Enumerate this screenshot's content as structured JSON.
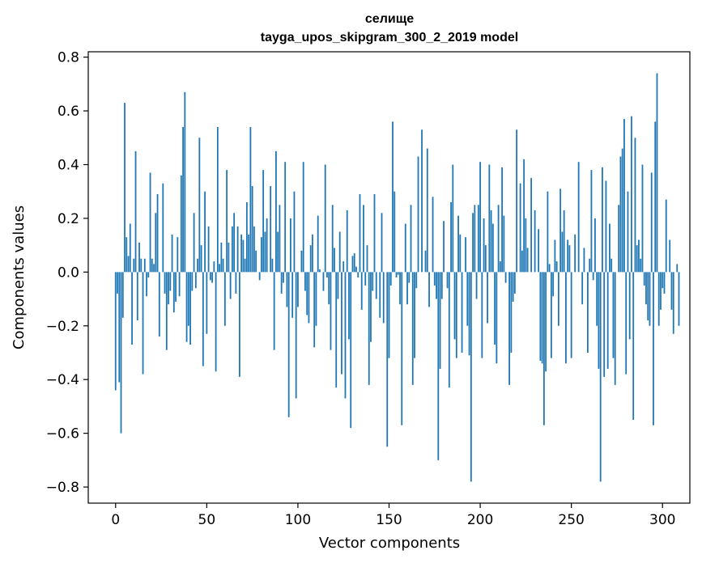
{
  "chart_data": {
    "type": "bar",
    "title": "селище",
    "subtitle": "tayga_upos_skipgram_300_2_2019 model",
    "xlabel": "Vector components",
    "ylabel": "Components values",
    "xlim": [
      -15,
      315
    ],
    "ylim": [
      -0.86,
      0.82
    ],
    "xticks": [
      0,
      50,
      100,
      150,
      200,
      250,
      300
    ],
    "xtick_labels": [
      "0",
      "50",
      "100",
      "150",
      "200",
      "250",
      "300"
    ],
    "yticks": [
      0.8,
      0.6,
      0.4,
      0.2,
      0.0,
      -0.2,
      -0.4,
      -0.6,
      -0.8
    ],
    "ytick_labels": [
      "0.8",
      "0.6",
      "0.4",
      "0.2",
      "0.0",
      "−0.2",
      "−0.4",
      "−0.6",
      "−0.8"
    ],
    "grid": false,
    "bar_color": "#1f77b4",
    "values": [
      -0.44,
      -0.08,
      -0.41,
      -0.6,
      -0.17,
      0.63,
      0.13,
      0.06,
      0.18,
      -0.27,
      0.05,
      0.45,
      -0.18,
      0.11,
      0.05,
      -0.38,
      0.05,
      -0.09,
      -0.02,
      0.37,
      0.05,
      0.03,
      0.22,
      0.29,
      -0.24,
      0.0,
      0.33,
      -0.08,
      -0.29,
      -0.12,
      -0.07,
      0.14,
      -0.15,
      -0.11,
      0.13,
      -0.09,
      0.36,
      0.54,
      0.67,
      -0.26,
      -0.2,
      -0.27,
      -0.07,
      0.22,
      -0.06,
      0.05,
      0.5,
      0.1,
      -0.35,
      0.3,
      -0.23,
      0.17,
      -0.03,
      -0.04,
      0.04,
      -0.37,
      0.54,
      0.03,
      0.11,
      0.05,
      -0.2,
      0.38,
      0.11,
      -0.1,
      0.17,
      0.22,
      -0.08,
      0.17,
      -0.39,
      0.14,
      0.12,
      0.05,
      0.26,
      0.14,
      0.54,
      0.32,
      0.17,
      0.08,
      0.0,
      -0.03,
      0.13,
      0.38,
      0.15,
      0.2,
      0.0,
      0.32,
      0.05,
      -0.29,
      0.45,
      0.15,
      0.25,
      -0.08,
      -0.04,
      0.41,
      -0.13,
      -0.54,
      0.2,
      -0.17,
      0.3,
      -0.47,
      -0.13,
      0.0,
      0.08,
      0.41,
      -0.07,
      -0.16,
      -0.19,
      0.1,
      0.14,
      -0.28,
      -0.2,
      0.21,
      0.01,
      0.0,
      -0.07,
      0.4,
      -0.02,
      -0.12,
      -0.29,
      0.25,
      0.09,
      -0.43,
      -0.1,
      0.15,
      -0.38,
      0.04,
      -0.47,
      0.23,
      -0.25,
      -0.58,
      0.06,
      0.07,
      0.02,
      -0.02,
      0.29,
      -0.14,
      0.25,
      -0.05,
      0.1,
      -0.42,
      -0.26,
      -0.07,
      0.29,
      -0.1,
      0.0,
      -0.17,
      0.22,
      -0.19,
      0.0,
      -0.65,
      -0.32,
      -0.05,
      0.56,
      0.3,
      -0.02,
      -0.01,
      -0.12,
      -0.57,
      0.0,
      0.18,
      -0.12,
      -0.04,
      0.25,
      -0.42,
      -0.32,
      -0.06,
      0.43,
      0.0,
      0.53,
      0.0,
      0.08,
      0.46,
      -0.13,
      0.0,
      0.28,
      -0.05,
      -0.1,
      -0.7,
      -0.36,
      -0.1,
      0.19,
      0.0,
      -0.06,
      -0.43,
      0.26,
      0.4,
      -0.25,
      -0.32,
      0.21,
      0.14,
      -0.3,
      0.0,
      0.13,
      -0.2,
      -0.31,
      -0.78,
      0.22,
      0.25,
      -0.1,
      0.25,
      0.41,
      -0.32,
      0.2,
      0.1,
      -0.19,
      0.4,
      0.23,
      0.18,
      -0.27,
      -0.34,
      0.25,
      0.04,
      0.39,
      0.21,
      -0.04,
      0.0,
      -0.42,
      -0.3,
      -0.11,
      -0.08,
      0.53,
      0.0,
      0.33,
      0.08,
      0.42,
      0.2,
      0.09,
      0.0,
      0.35,
      0.0,
      0.23,
      0.0,
      0.16,
      -0.33,
      -0.34,
      -0.57,
      -0.37,
      0.3,
      0.03,
      -0.32,
      -0.09,
      0.12,
      0.04,
      -0.2,
      0.31,
      0.15,
      0.23,
      -0.34,
      0.12,
      0.1,
      -0.32,
      0.0,
      0.14,
      0.0,
      0.41,
      0.0,
      -0.12,
      0.09,
      0.0,
      -0.3,
      0.05,
      0.38,
      -0.03,
      0.2,
      -0.2,
      -0.36,
      -0.78,
      0.39,
      -0.39,
      0.34,
      -0.36,
      0.18,
      0.05,
      -0.32,
      -0.42,
      0.0,
      0.25,
      0.43,
      0.46,
      0.57,
      -0.38,
      0.3,
      -0.25,
      0.58,
      -0.55,
      0.5,
      0.1,
      0.12,
      0.05,
      0.4,
      -0.05,
      -0.12,
      -0.18,
      -0.2,
      0.37,
      -0.57,
      0.56,
      0.74,
      -0.2,
      -0.14,
      -0.06,
      -0.08,
      0.27,
      0.0,
      0.12,
      -0.14,
      -0.23,
      0.0,
      0.03,
      -0.2
    ]
  }
}
